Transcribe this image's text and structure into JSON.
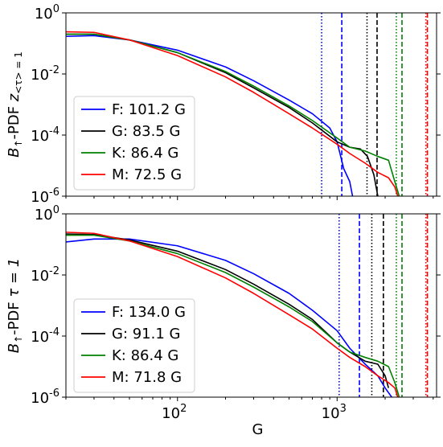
{
  "chart_data": [
    {
      "type": "line",
      "panel": "top",
      "ylabel": "B↑-PDF z<τ>=1",
      "ylabel_main": "B",
      "ylabel_sub1": "↑",
      "ylabel_mid": "-PDF ",
      "ylabel_z": "z",
      "ylabel_sub2": "<τ> = 1",
      "xlabel": "",
      "xscale": "log",
      "yscale": "log",
      "xlim": [
        20,
        4200
      ],
      "ylim": [
        1e-06,
        1
      ],
      "y_ticks": [
        {
          "value": 1,
          "base": "10",
          "exp": "0"
        },
        {
          "value": 0.01,
          "base": "10",
          "exp": "-2"
        },
        {
          "value": 0.0001,
          "base": "10",
          "exp": "-4"
        },
        {
          "value": 1e-06,
          "base": "10",
          "exp": "-6"
        }
      ],
      "legend_position": "lower-left",
      "series": [
        {
          "name": "F: 101.2 G",
          "color": "#0000ff",
          "x": [
            20,
            30,
            50,
            100,
            200,
            300,
            500,
            700,
            900,
            1000,
            1100,
            1200,
            1250
          ],
          "y": [
            0.17,
            0.18,
            0.13,
            0.06,
            0.017,
            0.006,
            0.0014,
            0.0005,
            0.00017,
            6e-05,
            8e-06,
            3e-06,
            1e-06
          ]
        },
        {
          "name": "G: 83.5 G",
          "color": "#000000",
          "x": [
            20,
            30,
            50,
            100,
            200,
            300,
            500,
            700,
            1000,
            1200,
            1400,
            1550,
            1700,
            1800
          ],
          "y": [
            0.2,
            0.2,
            0.13,
            0.05,
            0.011,
            0.0035,
            0.0008,
            0.00025,
            6e-05,
            4e-05,
            3.5e-05,
            2e-05,
            5e-06,
            1e-06
          ]
        },
        {
          "name": "K: 86.4 G",
          "color": "#008000",
          "x": [
            20,
            30,
            50,
            100,
            200,
            300,
            500,
            700,
            1000,
            1200,
            1500,
            1800,
            2100,
            2300,
            2450
          ],
          "y": [
            0.2,
            0.2,
            0.13,
            0.05,
            0.012,
            0.004,
            0.0009,
            0.0003,
            8e-05,
            4e-05,
            3e-05,
            2e-05,
            1.5e-05,
            3e-06,
            1e-06
          ]
        },
        {
          "name": "M: 72.5 G",
          "color": "#ff0000",
          "x": [
            20,
            30,
            50,
            100,
            200,
            300,
            500,
            700,
            1000,
            1200,
            1500,
            1800,
            2100,
            2300,
            2400
          ],
          "y": [
            0.24,
            0.23,
            0.13,
            0.04,
            0.008,
            0.0025,
            0.0005,
            0.00017,
            5e-05,
            2.5e-05,
            1.2e-05,
            6e-06,
            4e-06,
            2e-06,
            1e-06
          ]
        }
      ],
      "vlines": [
        {
          "x": 800,
          "color": "#0000ff",
          "style": "dotted"
        },
        {
          "x": 1070,
          "color": "#0000ff",
          "style": "dashed"
        },
        {
          "x": 1540,
          "color": "#000000",
          "style": "dotted"
        },
        {
          "x": 1780,
          "color": "#000000",
          "style": "dashed"
        },
        {
          "x": 2350,
          "color": "#008000",
          "style": "dotted"
        },
        {
          "x": 2550,
          "color": "#008000",
          "style": "dashed"
        },
        {
          "x": 3600,
          "color": "#ff0000",
          "style": "dotted"
        },
        {
          "x": 3680,
          "color": "#ff0000",
          "style": "dashed"
        }
      ]
    },
    {
      "type": "line",
      "panel": "bottom",
      "ylabel": "B↑-PDF τ=1",
      "ylabel_main": "B",
      "ylabel_sub1": "↑",
      "ylabel_mid": "-PDF ",
      "ylabel_tau": "τ = 1",
      "xlabel": "G",
      "xscale": "log",
      "yscale": "log",
      "xlim": [
        20,
        4200
      ],
      "ylim": [
        1e-06,
        1
      ],
      "y_ticks": [
        {
          "value": 1,
          "base": "10",
          "exp": "0"
        },
        {
          "value": 0.01,
          "base": "10",
          "exp": "-2"
        },
        {
          "value": 0.0001,
          "base": "10",
          "exp": "-4"
        },
        {
          "value": 1e-06,
          "base": "10",
          "exp": "-6"
        }
      ],
      "x_ticks": [
        {
          "value": 100,
          "base": "10",
          "exp": "2"
        },
        {
          "value": 1000,
          "base": "10",
          "exp": "3"
        }
      ],
      "legend_position": "lower-left",
      "series": [
        {
          "name": "F: 134.0 G",
          "color": "#0000ff",
          "x": [
            20,
            30,
            50,
            100,
            200,
            300,
            500,
            700,
            1000,
            1200,
            1500,
            1800,
            2000,
            2200
          ],
          "y": [
            0.12,
            0.15,
            0.15,
            0.09,
            0.03,
            0.011,
            0.0025,
            0.0007,
            0.00015,
            4e-05,
            1.2e-05,
            5e-06,
            2e-06,
            1e-06
          ]
        },
        {
          "name": "G: 91.1 G",
          "color": "#000000",
          "x": [
            20,
            30,
            50,
            100,
            200,
            300,
            500,
            700,
            1000,
            1200,
            1500,
            1800,
            2000,
            2100
          ],
          "y": [
            0.22,
            0.21,
            0.14,
            0.06,
            0.015,
            0.005,
            0.0011,
            0.00035,
            6e-05,
            3e-05,
            1.5e-05,
            1.2e-05,
            5e-06,
            2e-06
          ]
        },
        {
          "name": "K: 86.4 G",
          "color": "#008000",
          "x": [
            20,
            30,
            50,
            100,
            200,
            300,
            500,
            700,
            1000,
            1200,
            1500,
            1800,
            2100,
            2300,
            2450
          ],
          "y": [
            0.2,
            0.2,
            0.13,
            0.05,
            0.012,
            0.004,
            0.0009,
            0.0003,
            6e-05,
            3e-05,
            2e-05,
            1.5e-05,
            1e-05,
            3e-06,
            1e-06
          ]
        },
        {
          "name": "M: 71.8 G",
          "color": "#ff0000",
          "x": [
            20,
            30,
            50,
            100,
            200,
            300,
            500,
            700,
            1000,
            1200,
            1500,
            1800,
            2100,
            2300,
            2400
          ],
          "y": [
            0.25,
            0.23,
            0.13,
            0.04,
            0.008,
            0.0025,
            0.0005,
            0.00017,
            4e-05,
            2e-05,
            1e-05,
            5e-06,
            3e-06,
            2e-06,
            1e-06
          ]
        }
      ],
      "vlines": [
        {
          "x": 1030,
          "color": "#0000ff",
          "style": "dotted"
        },
        {
          "x": 1380,
          "color": "#0000ff",
          "style": "dashed"
        },
        {
          "x": 1650,
          "color": "#000000",
          "style": "dotted"
        },
        {
          "x": 1950,
          "color": "#000000",
          "style": "dashed"
        },
        {
          "x": 2350,
          "color": "#008000",
          "style": "dotted"
        },
        {
          "x": 2550,
          "color": "#008000",
          "style": "dashed"
        },
        {
          "x": 3600,
          "color": "#ff0000",
          "style": "dotted"
        },
        {
          "x": 3680,
          "color": "#ff0000",
          "style": "dashed"
        }
      ]
    }
  ]
}
